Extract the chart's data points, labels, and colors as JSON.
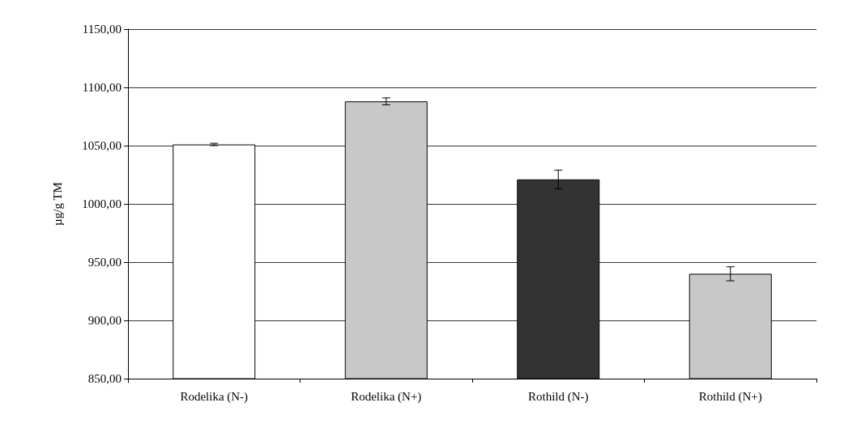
{
  "chart_data": {
    "type": "bar",
    "ylabel": "µg/g TM",
    "categories": [
      "Rodelika (N-)",
      "Rodelika (N+)",
      "Rothild (N-)",
      "Rothild (N+)"
    ],
    "values": [
      1051,
      1088,
      1021,
      940
    ],
    "errors": [
      1,
      3,
      8,
      6
    ],
    "colors": [
      "#ffffff",
      "#c8c8c8",
      "#333333",
      "#c8c8c8"
    ],
    "ylim": [
      850,
      1150
    ],
    "yticks": [
      {
        "value": 850,
        "label": "850,00"
      },
      {
        "value": 900,
        "label": "900,00"
      },
      {
        "value": 950,
        "label": "950,00"
      },
      {
        "value": 1000,
        "label": "1000,00"
      },
      {
        "value": 1050,
        "label": "1050,00"
      },
      {
        "value": 1100,
        "label": "1100,00"
      },
      {
        "value": 1150,
        "label": "1150,00"
      }
    ],
    "grid": "y"
  }
}
